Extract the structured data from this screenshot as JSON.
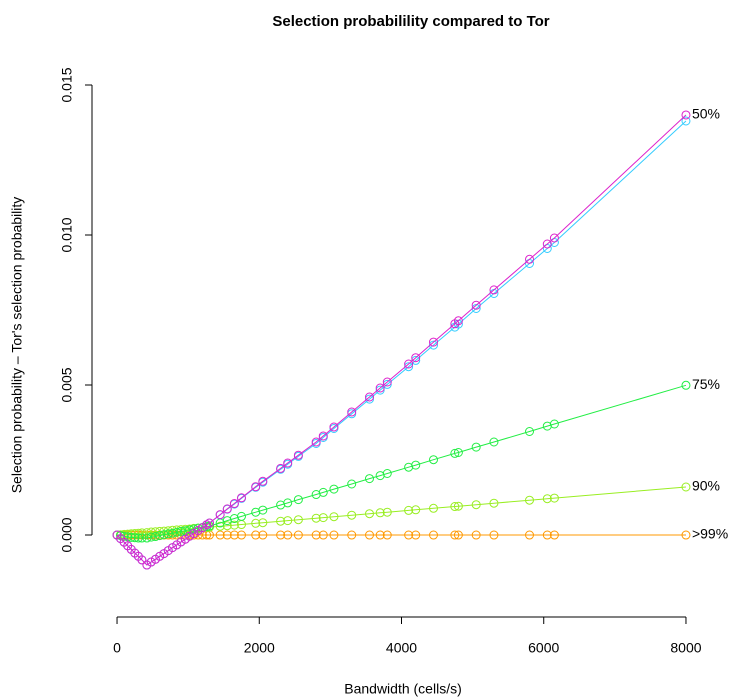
{
  "chart_data": {
    "type": "line",
    "title": "Selection probabilility compared to Tor",
    "x_label": "Bandwidth (cells/s)",
    "y_label": "Selection probability – Tor's selection probability",
    "x": [
      0,
      50,
      100,
      150,
      200,
      250,
      300,
      350,
      420,
      480,
      540,
      600,
      660,
      720,
      780,
      840,
      900,
      960,
      1020,
      1080,
      1140,
      1200,
      1260,
      1300,
      1450,
      1550,
      1650,
      1750,
      1950,
      2050,
      2300,
      2400,
      2550,
      2800,
      2900,
      3050,
      3300,
      3550,
      3700,
      3800,
      4100,
      4200,
      4450,
      4750,
      4800,
      5050,
      5300,
      5800,
      6050,
      6150,
      8000
    ],
    "series": [
      {
        "color": "#000000",
        "dashed": true,
        "markers": false,
        "values": [
          0,
          0,
          0,
          0,
          0,
          0,
          0,
          0,
          0,
          0,
          0,
          0,
          0,
          0,
          0,
          0,
          0,
          0,
          0,
          0,
          0,
          0,
          0,
          0,
          0,
          0,
          0,
          0,
          0,
          0,
          0,
          0,
          0,
          0,
          0,
          0,
          0,
          0,
          0,
          0,
          0,
          0,
          0,
          0,
          0,
          0,
          0,
          0,
          0,
          0,
          0
        ]
      },
      {
        "name": ">99%",
        "color": "#ff9900",
        "markers": true,
        "values": [
          0,
          0,
          0,
          0,
          0,
          0,
          0,
          0,
          0,
          0,
          0,
          0,
          0,
          0,
          0,
          0,
          0,
          0,
          0,
          0,
          0,
          0,
          0,
          0,
          0,
          0,
          0,
          0,
          0,
          0,
          0,
          0,
          0,
          0,
          0,
          0,
          0,
          0,
          0,
          0,
          0,
          0,
          0,
          0,
          0,
          0,
          0,
          0,
          0,
          0,
          0
        ]
      },
      {
        "name": "90%",
        "color": "#99ee22",
        "markers": true,
        "values": [
          0,
          1e-05,
          2e-05,
          3e-05,
          4e-05,
          5e-05,
          6e-05,
          7e-05,
          8e-05,
          0.0001,
          0.00011,
          0.00012,
          0.00013,
          0.00014,
          0.00016,
          0.00017,
          0.00018,
          0.00019,
          0.0002,
          0.00022,
          0.00023,
          0.00024,
          0.00025,
          0.00026,
          0.00029,
          0.00031,
          0.00033,
          0.00035,
          0.00039,
          0.00041,
          0.00046,
          0.00048,
          0.00051,
          0.00056,
          0.00058,
          0.00061,
          0.00066,
          0.00071,
          0.00074,
          0.00076,
          0.00082,
          0.00084,
          0.00089,
          0.00095,
          0.00096,
          0.00101,
          0.00106,
          0.00116,
          0.00121,
          0.00123,
          0.0016
        ]
      },
      {
        "name": "75%",
        "color": "#22ee44",
        "markers": true,
        "values": [
          0,
          -2e-05,
          -4e-05,
          -6e-05,
          -8e-05,
          -9e-05,
          -0.0001,
          -0.0001,
          -0.0001,
          -7e-05,
          -5e-05,
          -2e-05,
          1e-05,
          4e-05,
          6e-05,
          9e-05,
          0.00012,
          0.00014,
          0.00017,
          0.0002,
          0.00023,
          0.00025,
          0.00028,
          0.0003,
          0.0004,
          0.00048,
          0.00055,
          0.00062,
          0.00076,
          0.00083,
          0.001,
          0.00107,
          0.00118,
          0.00135,
          0.00142,
          0.00153,
          0.0017,
          0.00188,
          0.00198,
          0.00205,
          0.00226,
          0.00233,
          0.00251,
          0.00272,
          0.00275,
          0.00293,
          0.0031,
          0.00345,
          0.00363,
          0.0037,
          0.00499
        ]
      },
      {
        "color": "#33ccff",
        "markers": true,
        "values": [
          0,
          -0.00012,
          -0.00024,
          -0.00036,
          -0.00048,
          -0.0006,
          -0.00071,
          -0.00083,
          -0.001,
          -0.0009,
          -0.00081,
          -0.00071,
          -0.00062,
          -0.00052,
          -0.00042,
          -0.00033,
          -0.00023,
          -0.00014,
          -4e-05,
          5e-05,
          0.00015,
          0.00024,
          0.00034,
          0.0004,
          0.00067,
          0.00086,
          0.00103,
          0.00122,
          0.00159,
          0.00176,
          0.00219,
          0.00236,
          0.00262,
          0.00305,
          0.00325,
          0.00355,
          0.00404,
          0.00453,
          0.00483,
          0.00502,
          0.00561,
          0.00582,
          0.00633,
          0.00693,
          0.00703,
          0.00755,
          0.00805,
          0.00905,
          0.00955,
          0.00975,
          0.0138
        ]
      },
      {
        "name": "50%",
        "color": "#dd22cc",
        "markers": true,
        "values": [
          0,
          -0.00012,
          -0.00024,
          -0.00036,
          -0.00048,
          -0.0006,
          -0.00071,
          -0.00083,
          -0.001,
          -0.0009,
          -0.00081,
          -0.00071,
          -0.00062,
          -0.00052,
          -0.00042,
          -0.00033,
          -0.00023,
          -0.00014,
          -4e-05,
          5e-05,
          0.00015,
          0.00024,
          0.00034,
          0.0004,
          0.00068,
          0.00087,
          0.00105,
          0.00124,
          0.00161,
          0.00179,
          0.00222,
          0.0024,
          0.00266,
          0.0031,
          0.0033,
          0.0036,
          0.0041,
          0.0046,
          0.0049,
          0.0051,
          0.0057,
          0.00591,
          0.00643,
          0.00704,
          0.00714,
          0.00766,
          0.00817,
          0.00919,
          0.0097,
          0.0099,
          0.014
        ]
      }
    ],
    "xlim": [
      -352,
      8352
    ],
    "ylim": [
      -0.002733,
      0.015833
    ],
    "xticks": [
      0,
      2000,
      4000,
      6000,
      8000
    ],
    "yticks": [
      {
        "value": 0,
        "label": "0.000"
      },
      {
        "value": 0.005,
        "label": "0.005"
      },
      {
        "value": 0.01,
        "label": "0.010"
      },
      {
        "value": 0.015,
        "label": "0.015"
      }
    ]
  }
}
